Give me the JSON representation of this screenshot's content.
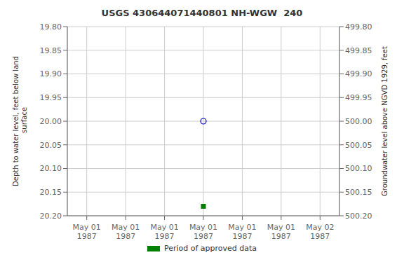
{
  "chart_data": {
    "type": "scatter",
    "title": "USGS 430644071440801 NH-WGW  240",
    "ylabel": "Depth to water level, feet below land\n surface",
    "y2label": "Groundwater level above NGVD 1929, feet",
    "categories": [
      "May 01\n1987",
      "May 01\n1987",
      "May 01\n1987",
      "May 01\n1987",
      "May 01\n1987",
      "May 01\n1987",
      "May 02\n1987"
    ],
    "series": [
      {
        "color": "#0000cc",
        "marker": "open_circle",
        "values": [
          null,
          null,
          null,
          20.0,
          null,
          null,
          null
        ]
      },
      {
        "name": "Period of approved data",
        "color": "#008000",
        "marker": "square",
        "values": [
          null,
          null,
          null,
          20.18,
          null,
          null,
          null
        ]
      }
    ],
    "ylim": [
      20.2,
      19.8
    ],
    "yticks": [
      {
        "value": 19.8,
        "label": "19.80"
      },
      19.85,
      {
        "value": 19.9,
        "label": "19.90"
      },
      19.95,
      {
        "value": 20.0,
        "label": "20.00"
      },
      20.05,
      {
        "value": 20.1,
        "label": "20.10"
      },
      20.15,
      {
        "value": 20.2,
        "label": "20.20"
      }
    ],
    "y2lim": [
      500.2,
      499.8
    ],
    "y2ticks": [
      {
        "value": 499.8,
        "label": "499.80"
      },
      499.85,
      {
        "value": 499.9,
        "label": "499.90"
      },
      499.95,
      {
        "value": 500.0,
        "label": "500.00"
      },
      500.05,
      {
        "value": 500.1,
        "label": "500.10"
      },
      500.15,
      {
        "value": 500.2,
        "label": "500.20"
      }
    ],
    "grid": true,
    "legend": "bottom"
  }
}
